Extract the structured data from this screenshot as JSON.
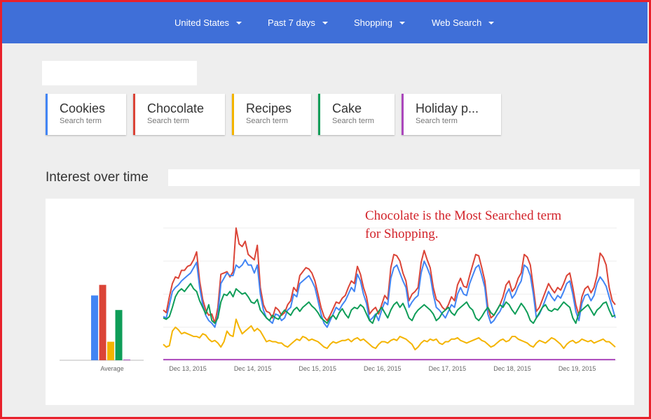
{
  "header": {
    "filters": [
      {
        "label": "United States"
      },
      {
        "label": "Past 7 days"
      },
      {
        "label": "Shopping"
      },
      {
        "label": "Web Search"
      }
    ]
  },
  "terms": [
    {
      "label": "Cookies",
      "sublabel": "Search term",
      "color": "#4285f4"
    },
    {
      "label": "Chocolate",
      "sublabel": "Search term",
      "color": "#db4437"
    },
    {
      "label": "Recipes",
      "sublabel": "Search term",
      "color": "#f4b400"
    },
    {
      "label": "Cake",
      "sublabel": "Search term",
      "color": "#0f9d58"
    },
    {
      "label": "Holiday p...",
      "sublabel": "Search term",
      "color": "#ab47bc"
    }
  ],
  "section": {
    "title": "Interest over time"
  },
  "annotation": {
    "line1": "Chocolate is the Most Searched term",
    "line2": "for Shopping."
  },
  "chart_data": {
    "type": "line",
    "average_label": "Average",
    "averages": [
      {
        "name": "Cookies",
        "value": 49,
        "color": "#4285f4"
      },
      {
        "name": "Chocolate",
        "value": 57,
        "color": "#db4437"
      },
      {
        "name": "Recipes",
        "value": 14,
        "color": "#f4b400"
      },
      {
        "name": "Cake",
        "value": 38,
        "color": "#0f9d58"
      },
      {
        "name": "Holiday p...",
        "value": 0.5,
        "color": "#ab47bc"
      }
    ],
    "x_ticks": [
      "Dec 13, 2015",
      "Dec 14, 2015",
      "Dec 15, 2015",
      "Dec 16, 2015",
      "Dec 17, 2015",
      "Dec 18, 2015",
      "Dec 19, 2015"
    ],
    "ylim": [
      0,
      100
    ],
    "grid": true,
    "series": [
      {
        "name": "Chocolate",
        "color": "#db4437",
        "values": [
          38,
          36,
          48,
          58,
          63,
          62,
          68,
          68,
          71,
          72,
          76,
          82,
          60,
          46,
          38,
          34,
          35,
          28,
          40,
          65,
          66,
          67,
          63,
          67,
          100,
          88,
          86,
          90,
          80,
          78,
          76,
          87,
          55,
          42,
          37,
          36,
          32,
          40,
          38,
          34,
          36,
          42,
          45,
          55,
          52,
          64,
          67,
          70,
          69,
          66,
          60,
          50,
          40,
          33,
          30,
          34,
          39,
          44,
          43,
          47,
          49,
          55,
          60,
          58,
          71,
          65,
          55,
          48,
          35,
          38,
          40,
          35,
          42,
          49,
          46,
          70,
          80,
          79,
          75,
          66,
          60,
          45,
          50,
          52,
          55,
          74,
          83,
          76,
          70,
          55,
          46,
          44,
          40,
          38,
          42,
          48,
          45,
          57,
          62,
          56,
          55,
          64,
          72,
          80,
          79,
          70,
          60,
          40,
          32,
          34,
          38,
          42,
          48,
          57,
          60,
          52,
          55,
          62,
          66,
          80,
          78,
          72,
          55,
          37,
          40,
          46,
          52,
          58,
          54,
          51,
          55,
          53,
          58,
          64,
          66,
          55,
          42,
          34,
          48,
          54,
          56,
          51,
          55,
          64,
          81,
          78,
          72,
          55,
          45,
          42
        ]
      },
      {
        "name": "Cookies",
        "color": "#4285f4",
        "values": [
          33,
          32,
          42,
          52,
          55,
          57,
          60,
          62,
          64,
          66,
          70,
          74,
          55,
          42,
          34,
          30,
          28,
          25,
          34,
          58,
          62,
          66,
          64,
          64,
          72,
          70,
          72,
          76,
          72,
          72,
          66,
          72,
          50,
          38,
          32,
          30,
          28,
          35,
          34,
          30,
          32,
          38,
          40,
          50,
          48,
          58,
          60,
          62,
          64,
          60,
          55,
          45,
          35,
          28,
          25,
          30,
          35,
          40,
          38,
          42,
          45,
          50,
          55,
          52,
          65,
          60,
          50,
          43,
          30,
          32,
          35,
          30,
          38,
          44,
          42,
          62,
          70,
          72,
          66,
          60,
          55,
          40,
          44,
          47,
          49,
          66,
          75,
          70,
          64,
          50,
          40,
          38,
          35,
          32,
          37,
          42,
          40,
          50,
          55,
          50,
          49,
          58,
          64,
          70,
          72,
          64,
          55,
          35,
          28,
          30,
          34,
          37,
          42,
          50,
          54,
          47,
          50,
          56,
          60,
          72,
          70,
          64,
          50,
          32,
          35,
          40,
          46,
          52,
          48,
          45,
          49,
          47,
          52,
          58,
          60,
          50,
          37,
          30,
          43,
          49,
          50,
          45,
          49,
          58,
          63,
          60,
          56,
          48,
          40,
          32
        ]
      },
      {
        "name": "Cake",
        "color": "#0f9d58",
        "values": [
          32,
          31,
          33,
          40,
          48,
          52,
          54,
          52,
          55,
          58,
          54,
          52,
          45,
          40,
          35,
          42,
          30,
          28,
          32,
          44,
          50,
          49,
          52,
          48,
          54,
          52,
          50,
          51,
          48,
          44,
          43,
          46,
          38,
          35,
          32,
          30,
          34,
          32,
          31,
          35,
          38,
          36,
          34,
          38,
          40,
          37,
          40,
          42,
          44,
          41,
          39,
          36,
          32,
          30,
          28,
          32,
          34,
          31,
          36,
          39,
          35,
          32,
          38,
          40,
          39,
          42,
          40,
          35,
          30,
          28,
          34,
          37,
          40,
          36,
          32,
          38,
          42,
          44,
          40,
          43,
          38,
          32,
          30,
          35,
          38,
          40,
          42,
          40,
          38,
          35,
          30,
          32,
          36,
          38,
          40,
          36,
          34,
          38,
          40,
          42,
          44,
          40,
          38,
          32,
          30,
          33,
          37,
          40,
          36,
          34,
          38,
          42,
          40,
          44,
          42,
          38,
          35,
          39,
          43,
          40,
          36,
          30,
          28,
          32,
          36,
          40,
          42,
          38,
          37,
          39,
          38,
          41,
          44,
          42,
          40,
          32,
          28,
          36,
          38,
          40,
          42,
          38,
          34,
          38,
          40,
          43,
          44,
          38,
          33,
          34
        ]
      },
      {
        "name": "Recipes",
        "color": "#f4b400",
        "values": [
          12,
          10,
          11,
          22,
          25,
          23,
          20,
          21,
          20,
          19,
          18,
          18,
          17,
          20,
          19,
          16,
          14,
          15,
          13,
          10,
          14,
          22,
          19,
          18,
          31,
          25,
          20,
          22,
          24,
          26,
          22,
          24,
          22,
          18,
          14,
          15,
          14,
          14,
          13,
          13,
          11,
          10,
          12,
          14,
          16,
          15,
          18,
          17,
          15,
          16,
          15,
          14,
          12,
          10,
          9,
          12,
          14,
          13,
          14,
          15,
          15,
          16,
          14,
          16,
          17,
          15,
          16,
          14,
          12,
          10,
          9,
          12,
          14,
          14,
          13,
          15,
          16,
          15,
          18,
          17,
          16,
          14,
          12,
          8,
          10,
          13,
          15,
          14,
          16,
          15,
          16,
          13,
          12,
          14,
          14,
          16,
          16,
          17,
          15,
          14,
          13,
          14,
          15,
          16,
          17,
          15,
          14,
          12,
          10,
          11,
          13,
          15,
          16,
          14,
          15,
          18,
          18,
          16,
          15,
          14,
          13,
          11,
          10,
          13,
          15,
          14,
          13,
          15,
          17,
          16,
          14,
          12,
          9,
          12,
          14,
          15,
          13,
          14,
          16,
          15,
          14,
          15,
          13,
          14,
          15,
          16,
          14,
          14,
          12,
          10
        ]
      },
      {
        "name": "Holiday p...",
        "color": "#ab47bc",
        "values": [
          0.5,
          0.5,
          0.5,
          0.5,
          0.5,
          0.5,
          0.5,
          0.5,
          0.5,
          0.5,
          0.5,
          0.5,
          0.5,
          0.5,
          0.5,
          0.5,
          0.5,
          0.5,
          0.5,
          0.5,
          0.5,
          0.5,
          0.5,
          0.5,
          0.5,
          0.5,
          0.5,
          0.5,
          0.5,
          0.5,
          0.5,
          0.5,
          0.5,
          0.5,
          0.5,
          0.5,
          0.5,
          0.5,
          0.5,
          0.5,
          0.5,
          0.5,
          0.5,
          0.5,
          0.5,
          0.5,
          0.5,
          0.5,
          0.5,
          0.5,
          0.5,
          0.5,
          0.5,
          0.5,
          0.5,
          0.5,
          0.5,
          0.5,
          0.5,
          0.5,
          0.5,
          0.5,
          0.5,
          0.5,
          0.5,
          0.5,
          0.5,
          0.5,
          0.5,
          0.5,
          0.5,
          0.5,
          0.5,
          0.5,
          0.5,
          0.5,
          0.5,
          0.5,
          0.5,
          0.5,
          0.5,
          0.5,
          0.5,
          0.5,
          0.5,
          0.5,
          0.5,
          0.5,
          0.5,
          0.5,
          0.5,
          0.5,
          0.5,
          0.5,
          0.5,
          0.5,
          0.5,
          0.5,
          0.5,
          0.5,
          0.5,
          0.5,
          0.5,
          0.5,
          0.5,
          0.5,
          0.5,
          0.5,
          0.5,
          0.5,
          0.5,
          0.5,
          0.5,
          0.5,
          0.5,
          0.5,
          0.5,
          0.5,
          0.5,
          0.5,
          0.5,
          0.5,
          0.5,
          0.5,
          0.5,
          0.5,
          0.5,
          0.5,
          0.5,
          0.5,
          0.5,
          0.5,
          0.5,
          0.5,
          0.5,
          0.5,
          0.5,
          0.5,
          0.5,
          0.5,
          0.5,
          0.5,
          0.5,
          0.5,
          0.5,
          0.5,
          0.5,
          0.5
        ]
      }
    ]
  }
}
